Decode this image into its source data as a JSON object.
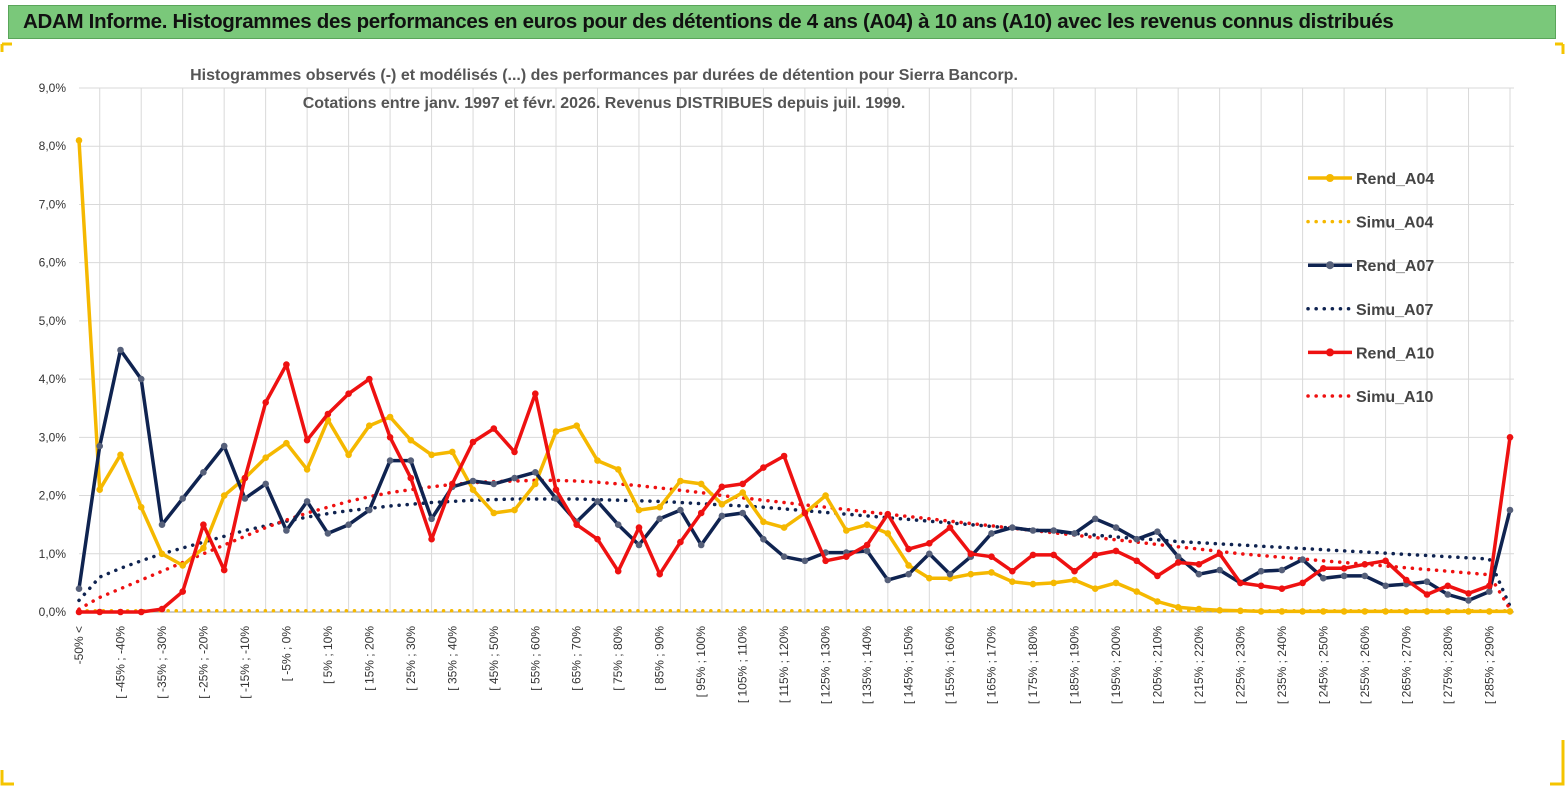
{
  "banner": {
    "title": "ADAM Informe. Histogrammes des performances en euros pour des détentions de 4 ans (A04) à 10 ans (A10) avec les revenus connus distribués"
  },
  "chart_data": {
    "type": "line",
    "title": "Histogrammes observés (-) et modélisés (...) des performances par durées de détention pour Sierra Bancorp.",
    "subtitle": "Cotations entre janv. 1997 et févr. 2026. Revenus DISTRIBUES depuis juil. 1999.",
    "xlabel": "",
    "ylabel": "",
    "ylim": [
      0,
      9
    ],
    "y_ticks": [
      "0,0%",
      "1,0%",
      "2,0%",
      "3,0%",
      "4,0%",
      "5,0%",
      "6,0%",
      "7,0%",
      "8,0%",
      "9,0%"
    ],
    "grid": true,
    "legend_position": "right",
    "x_tick_labels": [
      "-50% <",
      "[ -45% ; -40%",
      "[ -35% ; -30%",
      "[ -25% ; -20%",
      "[ -15% ; -10%",
      "[ -5% ; 0%",
      "[ 5% ; 10%",
      "[ 15% ; 20%",
      "[ 25% ; 30%",
      "[ 35% ; 40%",
      "[ 45% ; 50%",
      "[ 55% ; 60%",
      "[ 65% ; 70%",
      "[ 75% ; 80%",
      "[ 85% ; 90%",
      "[ 95% ; 100%",
      "[ 105% ; 110%",
      "[ 115% ; 120%",
      "[ 125% ; 130%",
      "[ 135% ; 140%",
      "[ 145% ; 150%",
      "[ 155% ; 160%",
      "[ 165% ; 170%",
      "[ 175% ; 180%",
      "[ 185% ; 190%",
      "[ 195% ; 200%",
      "[ 205% ; 210%",
      "[ 215% ; 220%",
      "[ 225% ; 230%",
      "[ 235% ; 240%",
      "[ 245% ; 250%",
      "[ 255% ; 260%",
      "[ 265% ; 270%",
      "[ 275% ; 280%",
      "[ 285% ; 290%"
    ],
    "series": [
      {
        "name": "Rend_A04",
        "style": "solid-marker",
        "color": "#f5b800",
        "values": [
          8.1,
          2.1,
          2.7,
          1.8,
          1.0,
          0.8,
          1.1,
          2.0,
          2.3,
          2.65,
          2.9,
          2.45,
          3.3,
          2.7,
          3.2,
          3.35,
          2.95,
          2.7,
          2.75,
          2.1,
          1.7,
          1.75,
          2.2,
          3.1,
          3.2,
          2.6,
          2.45,
          1.75,
          1.8,
          2.25,
          2.2,
          1.85,
          2.05,
          1.55,
          1.45,
          1.7,
          2.0,
          1.4,
          1.5,
          1.35,
          0.8,
          0.58,
          0.58,
          0.65,
          0.68,
          0.52,
          0.48,
          0.5,
          0.55,
          0.4,
          0.5,
          0.35,
          0.18,
          0.08,
          0.05,
          0.03,
          0.02,
          0.01,
          0.01,
          0.01,
          0.01,
          0.01,
          0.01,
          0.01,
          0.01,
          0.01,
          0.01,
          0.01,
          0.01,
          0.01
        ]
      },
      {
        "name": "Simu_A04",
        "style": "dotted",
        "color": "#f5b800",
        "values": [
          0.02,
          0.02,
          0.02,
          0.02,
          0.02,
          0.02,
          0.02,
          0.02,
          0.02,
          0.02,
          0.02,
          0.02,
          0.02,
          0.02,
          0.02,
          0.02,
          0.02,
          0.02,
          0.02,
          0.02,
          0.02,
          0.02,
          0.02,
          0.02,
          0.02,
          0.02,
          0.02,
          0.02,
          0.02,
          0.02,
          0.02,
          0.02,
          0.02,
          0.02,
          0.02,
          0.02,
          0.02,
          0.02,
          0.02,
          0.02,
          0.02,
          0.02,
          0.02,
          0.02,
          0.02,
          0.02,
          0.02,
          0.02,
          0.02,
          0.02,
          0.02,
          0.02,
          0.02,
          0.02,
          0.02,
          0.02,
          0.02,
          0.02,
          0.02,
          0.02,
          0.02,
          0.02,
          0.02,
          0.02,
          0.02,
          0.02,
          0.02,
          0.02,
          0.02,
          0.02
        ]
      },
      {
        "name": "Rend_A07",
        "style": "solid-marker",
        "color": "#0f2350",
        "values": [
          0.4,
          2.85,
          4.5,
          4.0,
          1.5,
          1.95,
          2.4,
          2.85,
          1.95,
          2.2,
          1.4,
          1.9,
          1.35,
          1.5,
          1.75,
          2.6,
          2.6,
          1.6,
          2.15,
          2.25,
          2.2,
          2.3,
          2.4,
          1.95,
          1.55,
          1.9,
          1.5,
          1.15,
          1.6,
          1.75,
          1.15,
          1.65,
          1.7,
          1.25,
          0.95,
          0.88,
          1.02,
          1.02,
          1.05,
          0.55,
          0.65,
          1.0,
          0.65,
          0.95,
          1.35,
          1.45,
          1.4,
          1.4,
          1.35,
          1.6,
          1.45,
          1.25,
          1.38,
          0.95,
          0.65,
          0.72,
          0.5,
          0.7,
          0.72,
          0.9,
          0.58,
          0.62,
          0.62,
          0.45,
          0.48,
          0.52,
          0.3,
          0.2,
          0.35,
          1.75
        ]
      },
      {
        "name": "Simu_A07",
        "style": "dotted",
        "color": "#0f2350",
        "values": [
          0.2,
          0.6,
          0.75,
          0.88,
          1.0,
          1.1,
          1.2,
          1.3,
          1.4,
          1.48,
          1.56,
          1.63,
          1.69,
          1.74,
          1.78,
          1.82,
          1.85,
          1.88,
          1.9,
          1.92,
          1.93,
          1.94,
          1.94,
          1.94,
          1.94,
          1.93,
          1.92,
          1.91,
          1.9,
          1.88,
          1.86,
          1.84,
          1.82,
          1.8,
          1.77,
          1.74,
          1.71,
          1.68,
          1.65,
          1.62,
          1.59,
          1.56,
          1.53,
          1.5,
          1.47,
          1.44,
          1.41,
          1.38,
          1.35,
          1.32,
          1.29,
          1.26,
          1.24,
          1.21,
          1.19,
          1.17,
          1.15,
          1.13,
          1.11,
          1.09,
          1.07,
          1.05,
          1.03,
          1.01,
          0.99,
          0.97,
          0.95,
          0.93,
          0.91,
          0.1
        ]
      },
      {
        "name": "Rend_A10",
        "style": "solid-marker",
        "color": "#ee1111",
        "values": [
          0.0,
          0.0,
          0.0,
          0.0,
          0.05,
          0.35,
          1.5,
          0.72,
          2.3,
          3.6,
          4.25,
          2.95,
          3.4,
          3.75,
          4.0,
          3.0,
          2.3,
          1.25,
          2.2,
          2.92,
          3.15,
          2.75,
          3.75,
          2.1,
          1.5,
          1.25,
          0.7,
          1.45,
          0.65,
          1.2,
          1.7,
          2.15,
          2.2,
          2.48,
          2.68,
          1.7,
          0.88,
          0.95,
          1.15,
          1.68,
          1.08,
          1.18,
          1.45,
          1.0,
          0.95,
          0.7,
          0.98,
          0.98,
          0.7,
          0.98,
          1.05,
          0.88,
          0.62,
          0.85,
          0.82,
          1.0,
          0.5,
          0.45,
          0.4,
          0.5,
          0.75,
          0.75,
          0.82,
          0.88,
          0.55,
          0.3,
          0.45,
          0.32,
          0.45,
          3.0
        ]
      },
      {
        "name": "Simu_A10",
        "style": "dotted",
        "color": "#ee1111",
        "values": [
          0.05,
          0.25,
          0.4,
          0.55,
          0.7,
          0.85,
          1.0,
          1.15,
          1.3,
          1.45,
          1.58,
          1.7,
          1.8,
          1.9,
          1.98,
          2.05,
          2.1,
          2.15,
          2.19,
          2.22,
          2.24,
          2.25,
          2.26,
          2.26,
          2.25,
          2.23,
          2.2,
          2.17,
          2.13,
          2.09,
          2.05,
          2.0,
          1.96,
          1.92,
          1.88,
          1.84,
          1.8,
          1.76,
          1.72,
          1.68,
          1.64,
          1.6,
          1.56,
          1.52,
          1.48,
          1.44,
          1.4,
          1.36,
          1.32,
          1.28,
          1.24,
          1.2,
          1.16,
          1.12,
          1.08,
          1.04,
          1.0,
          0.97,
          0.94,
          0.91,
          0.88,
          0.85,
          0.82,
          0.79,
          0.76,
          0.73,
          0.7,
          0.67,
          0.64,
          0.05
        ]
      }
    ]
  },
  "colors": {
    "banner_bg": "#7ac87a",
    "frame_border": "#f5c400",
    "grid": "#d9d9d9"
  }
}
